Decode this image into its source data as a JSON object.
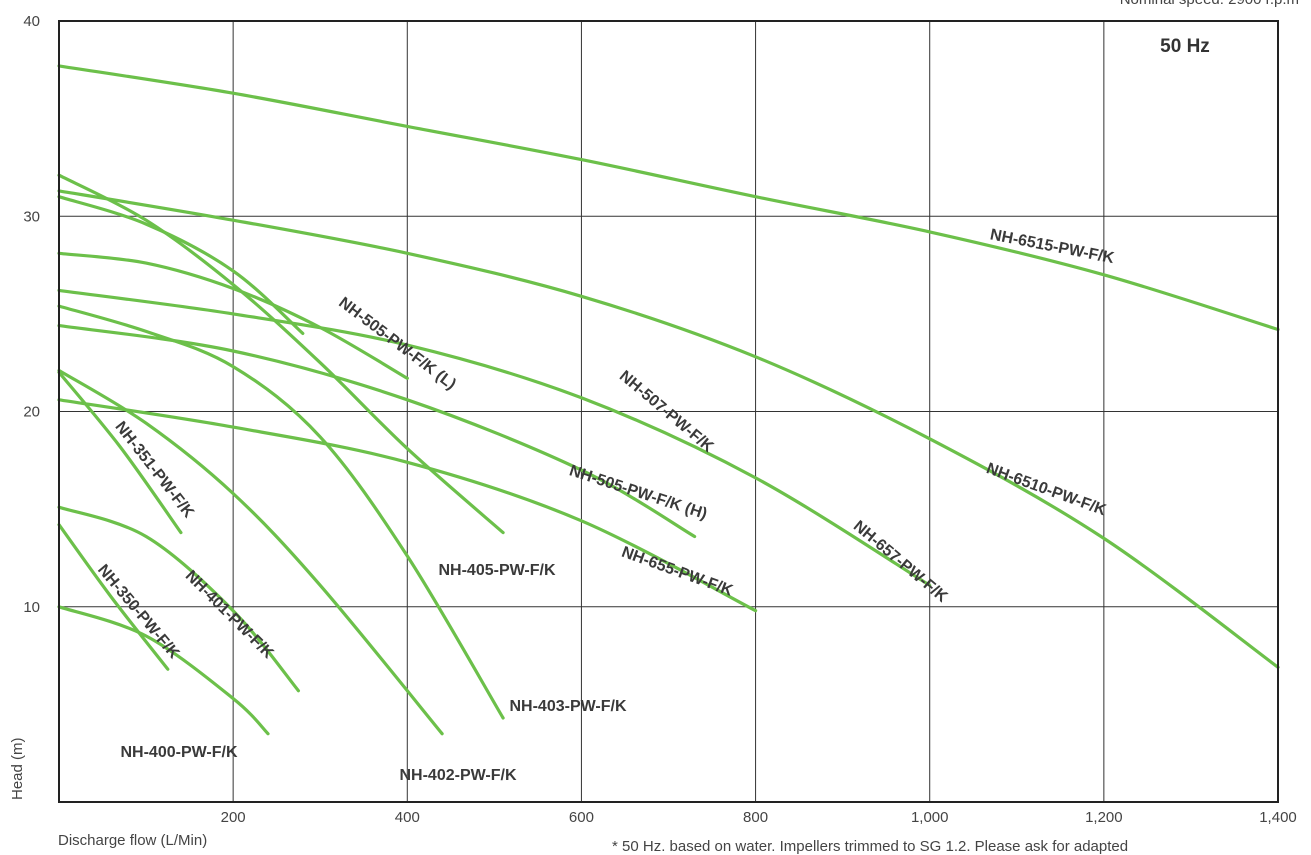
{
  "chart_data": {
    "type": "line",
    "title": "",
    "xlabel": "Discharge flow (L/Min)",
    "ylabel": "Head (m)",
    "xlim": [
      0,
      1400
    ],
    "ylim": [
      0,
      40
    ],
    "x_ticks": [
      "200",
      "400",
      "600",
      "800",
      "1,000",
      "1,200",
      "1,400"
    ],
    "y_ticks": [
      "10",
      "20",
      "30",
      "40"
    ],
    "grid": true,
    "frequency_label": "50 Hz",
    "top_note": "Nominal speed: 2900 r.p.m",
    "footnote": "* 50 Hz. based on water. Impellers trimmed to SG 1.2. Please ask for adapted",
    "line_color": "#6cc04a",
    "series": [
      {
        "name": "NH-6515-PW-F/K",
        "x": [
          0,
          200,
          400,
          600,
          800,
          1000,
          1200,
          1400
        ],
        "y": [
          37.7,
          36.3,
          34.6,
          32.9,
          31.0,
          29.2,
          27.0,
          24.2
        ]
      },
      {
        "name": "NH-6510-PW-F/K",
        "x": [
          0,
          200,
          400,
          600,
          800,
          1000,
          1200,
          1400
        ],
        "y": [
          31.3,
          29.8,
          28.1,
          25.9,
          22.8,
          18.6,
          13.5,
          6.9
        ]
      },
      {
        "name": "NH-657-PW-F/K",
        "x": [
          0,
          200,
          400,
          600,
          800,
          1000
        ],
        "y": [
          26.2,
          25.0,
          23.4,
          20.7,
          16.6,
          11.1
        ]
      },
      {
        "name": "NH-507-PW-F/K",
        "x": [
          0,
          100,
          200,
          280
        ],
        "y": [
          31.0,
          29.6,
          27.2,
          24.0
        ]
      },
      {
        "name": "NH-655-PW-F/K",
        "x": [
          0,
          200,
          400,
          600,
          800
        ],
        "y": [
          20.6,
          19.2,
          17.4,
          14.4,
          9.8
        ]
      },
      {
        "name": "NH-505-PW-F/K (H)",
        "x": [
          0,
          200,
          400,
          600,
          730
        ],
        "y": [
          24.4,
          23.1,
          20.6,
          17.0,
          13.6
        ]
      },
      {
        "name": "NH-505-PW-F/K (L)",
        "x": [
          0,
          100,
          200,
          300,
          400
        ],
        "y": [
          28.1,
          27.6,
          26.3,
          24.3,
          21.7
        ]
      },
      {
        "name": "NH-405-PW-F/K",
        "x": [
          0,
          100,
          200,
          300,
          400,
          510
        ],
        "y": [
          32.1,
          29.8,
          26.5,
          22.5,
          18.1,
          13.8
        ]
      },
      {
        "name": "NH-403-PW-F/K",
        "x": [
          0,
          100,
          200,
          300,
          400,
          510
        ],
        "y": [
          25.4,
          24.1,
          22.3,
          18.7,
          12.6,
          4.3
        ]
      },
      {
        "name": "NH-402-PW-F/K",
        "x": [
          0,
          100,
          200,
          300,
          440
        ],
        "y": [
          22.1,
          19.4,
          15.8,
          11.1,
          3.5
        ]
      },
      {
        "name": "NH-401-PW-F/K",
        "x": [
          0,
          100,
          200,
          275
        ],
        "y": [
          15.1,
          13.6,
          9.8,
          5.7
        ]
      },
      {
        "name": "NH-400-PW-F/K",
        "x": [
          0,
          100,
          200,
          240
        ],
        "y": [
          10.0,
          8.5,
          5.3,
          3.5
        ]
      },
      {
        "name": "NH-351-PW-F/K",
        "x": [
          0,
          70,
          140
        ],
        "y": [
          22.0,
          18.2,
          13.8
        ]
      },
      {
        "name": "NH-350-PW-F/K",
        "x": [
          0,
          60,
          125
        ],
        "y": [
          14.2,
          10.5,
          6.8
        ]
      }
    ]
  }
}
